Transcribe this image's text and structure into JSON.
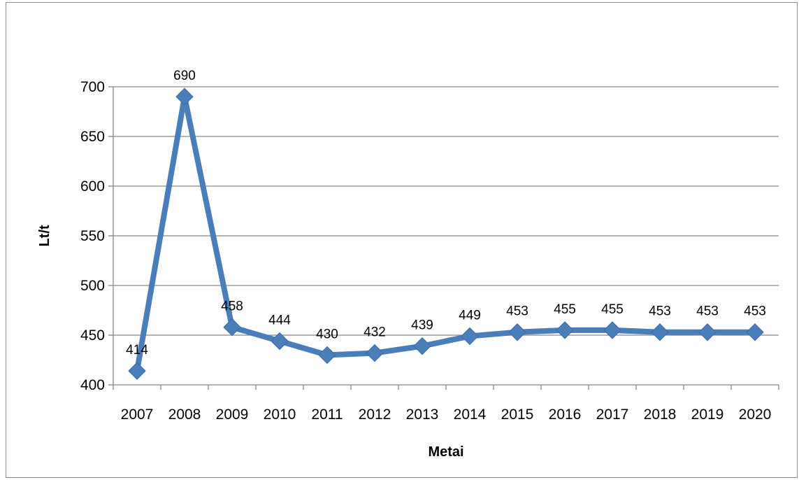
{
  "chart_data": {
    "type": "line",
    "title": "",
    "xlabel": "Metai",
    "ylabel": "Lt/t",
    "categories": [
      "2007",
      "2008",
      "2009",
      "2010",
      "2011",
      "2012",
      "2013",
      "2014",
      "2015",
      "2016",
      "2017",
      "2018",
      "2019",
      "2020"
    ],
    "values": [
      414,
      690,
      458,
      444,
      430,
      432,
      439,
      449,
      453,
      455,
      455,
      453,
      453,
      453
    ],
    "data_labels": [
      "414",
      "690",
      "458",
      "444",
      "430",
      "432",
      "439",
      "449",
      "453",
      "455",
      "455",
      "453",
      "453",
      "453"
    ],
    "ylim": [
      400,
      700
    ],
    "yticks": [
      "400",
      "450",
      "500",
      "550",
      "600",
      "650",
      "700"
    ],
    "grid": "horizontal",
    "legend": "none",
    "colors": {
      "series": "#4a7ebb",
      "grid": "#868686",
      "axis": "#868686"
    }
  }
}
